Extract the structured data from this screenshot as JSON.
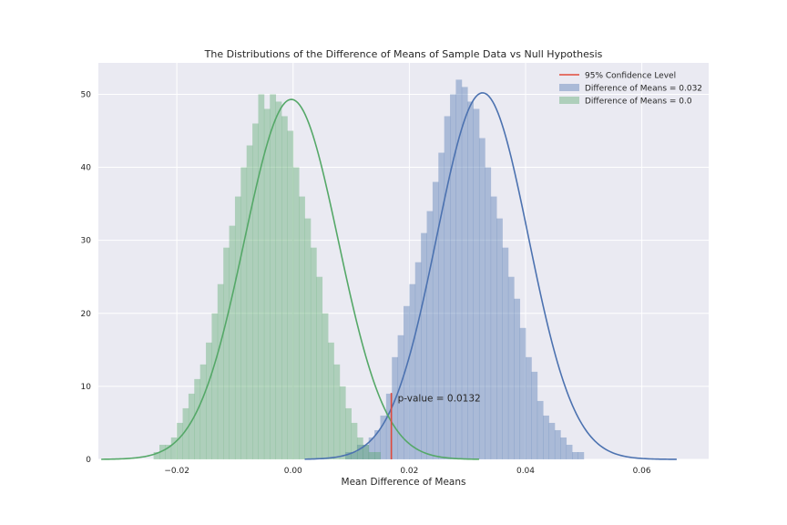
{
  "chart_data": {
    "type": "histogram",
    "title": "The Distributions of the Difference of Means of Sample Data vs Null Hypothesis",
    "xlabel": "Mean Difference of Means",
    "ylabel": "",
    "xlim": [
      -0.0335,
      0.0715
    ],
    "ylim": [
      0,
      54.3
    ],
    "xticks": [
      -0.02,
      0.0,
      0.02,
      0.04,
      0.06
    ],
    "xtick_labels": [
      "−0.02",
      "0.00",
      "0.02",
      "0.04",
      "0.06"
    ],
    "yticks": [
      0,
      10,
      20,
      30,
      40,
      50
    ],
    "ytick_labels": [
      "0",
      "10",
      "20",
      "30",
      "40",
      "50"
    ],
    "grid": true,
    "legend_position": "top-right",
    "legend": [
      {
        "label": "95% Confidence Level",
        "kind": "line",
        "color": "#e24a3b"
      },
      {
        "label": "Difference of Means = 0.032",
        "kind": "patch",
        "color": "#4c72b0"
      },
      {
        "label": "Difference of Means = 0.0",
        "kind": "patch",
        "color": "#55a868"
      }
    ],
    "series": [
      {
        "name": "Difference of Means = 0.032",
        "color": "#4c72b0",
        "bin_width": 0.001,
        "bin_start": 0.009,
        "values": [
          1,
          1,
          2,
          2,
          3,
          4,
          6,
          9,
          14,
          17,
          21,
          24,
          27,
          31,
          34,
          38,
          42,
          47,
          50,
          52,
          51,
          49,
          48,
          44,
          40,
          36,
          33,
          29,
          25,
          22,
          18,
          14,
          12,
          8,
          6,
          5,
          4,
          3,
          2,
          1,
          1
        ],
        "kde": {
          "mean": 0.0326,
          "sd": 0.0079,
          "peak": 50.2,
          "x_range": [
            0.002,
            0.066
          ]
        }
      },
      {
        "name": "Difference of Means = 0.0",
        "color": "#55a868",
        "bin_width": 0.001,
        "bin_start": -0.024,
        "values": [
          1,
          2,
          2,
          3,
          5,
          7,
          9,
          11,
          13,
          16,
          20,
          24,
          29,
          32,
          36,
          40,
          43,
          46,
          50,
          48,
          50,
          49,
          47,
          45,
          40,
          36,
          33,
          29,
          25,
          20,
          16,
          13,
          10,
          7,
          5,
          3,
          2,
          1,
          1
        ],
        "kde": {
          "mean": -0.0003,
          "sd": 0.0081,
          "peak": 49.3,
          "x_range": [
            -0.033,
            0.032
          ]
        }
      }
    ],
    "threshold": {
      "x": 0.0169,
      "y_max": 9.1,
      "color": "#e24a3b"
    },
    "annotation": {
      "text": "p-value = 0.0132",
      "x": 0.018,
      "y": 8.3
    }
  }
}
